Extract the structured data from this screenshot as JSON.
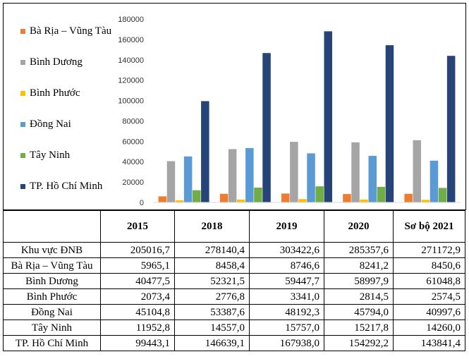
{
  "chart_data": {
    "type": "bar",
    "categories": [
      "",
      "",
      "",
      "",
      ""
    ],
    "series": [
      {
        "name": "Bà Rịa – Vũng Tàu",
        "color": "#ED7D31",
        "values": [
          5965.1,
          8458.4,
          8746.6,
          8241.2,
          8450.6
        ]
      },
      {
        "name": "Bình Dương",
        "color": "#A5A5A5",
        "values": [
          40477.5,
          52321.5,
          59447.7,
          58997.9,
          61048.8
        ]
      },
      {
        "name": "Bình Phước",
        "color": "#FFC000",
        "values": [
          2073.4,
          2776.8,
          3341.0,
          2814.5,
          2574.5
        ]
      },
      {
        "name": "Đồng Nai",
        "color": "#5B9BD5",
        "values": [
          45104.8,
          53387.6,
          48192.3,
          45794.0,
          40997.6
        ]
      },
      {
        "name": "Tây Ninh",
        "color": "#70AD47",
        "values": [
          11952.8,
          14557.0,
          15757.0,
          15217.8,
          14260.0
        ]
      },
      {
        "name": "TP. Hồ Chí Minh",
        "color": "#264478",
        "values": [
          99443.1,
          146639.1,
          167938.0,
          154292.2,
          143841.4
        ]
      }
    ],
    "ylim": [
      0,
      180000
    ],
    "yticks": [
      "0",
      "20000",
      "40000",
      "60000",
      "80000",
      "100000",
      "120000",
      "140000",
      "160000",
      "180000"
    ],
    "grid": false,
    "legend": "left"
  },
  "table": {
    "headers": [
      "",
      "2015",
      "2018",
      "2019",
      "2020",
      "Sơ bộ 2021"
    ],
    "rows": [
      {
        "label": "Khu vực ĐNB",
        "values": [
          "205016,7",
          "278140,4",
          "303422,6",
          "285357,6",
          "271172,9"
        ]
      },
      {
        "label": "Bà Rịa – Vũng Tàu",
        "values": [
          "5965,1",
          "8458,4",
          "8746,6",
          "8241,2",
          "8450,6"
        ]
      },
      {
        "label": "Bình Dương",
        "values": [
          "40477,5",
          "52321,5",
          "59447,7",
          "58997,9",
          "61048,8"
        ]
      },
      {
        "label": "Bình Phước",
        "values": [
          "2073,4",
          "2776,8",
          "3341,0",
          "2814,5",
          "2574,5"
        ]
      },
      {
        "label": "Đồng Nai",
        "values": [
          "45104,8",
          "53387,6",
          "48192,3",
          "45794,0",
          "40997,6"
        ]
      },
      {
        "label": "Tây Ninh",
        "values": [
          "11952,8",
          "14557,0",
          "15757,0",
          "15217,8",
          "14260,0"
        ]
      },
      {
        "label": "TP. Hồ Chí Minh",
        "values": [
          "99443,1",
          "146639,1",
          "167938,0",
          "154292,2",
          "143841,4"
        ]
      }
    ]
  }
}
